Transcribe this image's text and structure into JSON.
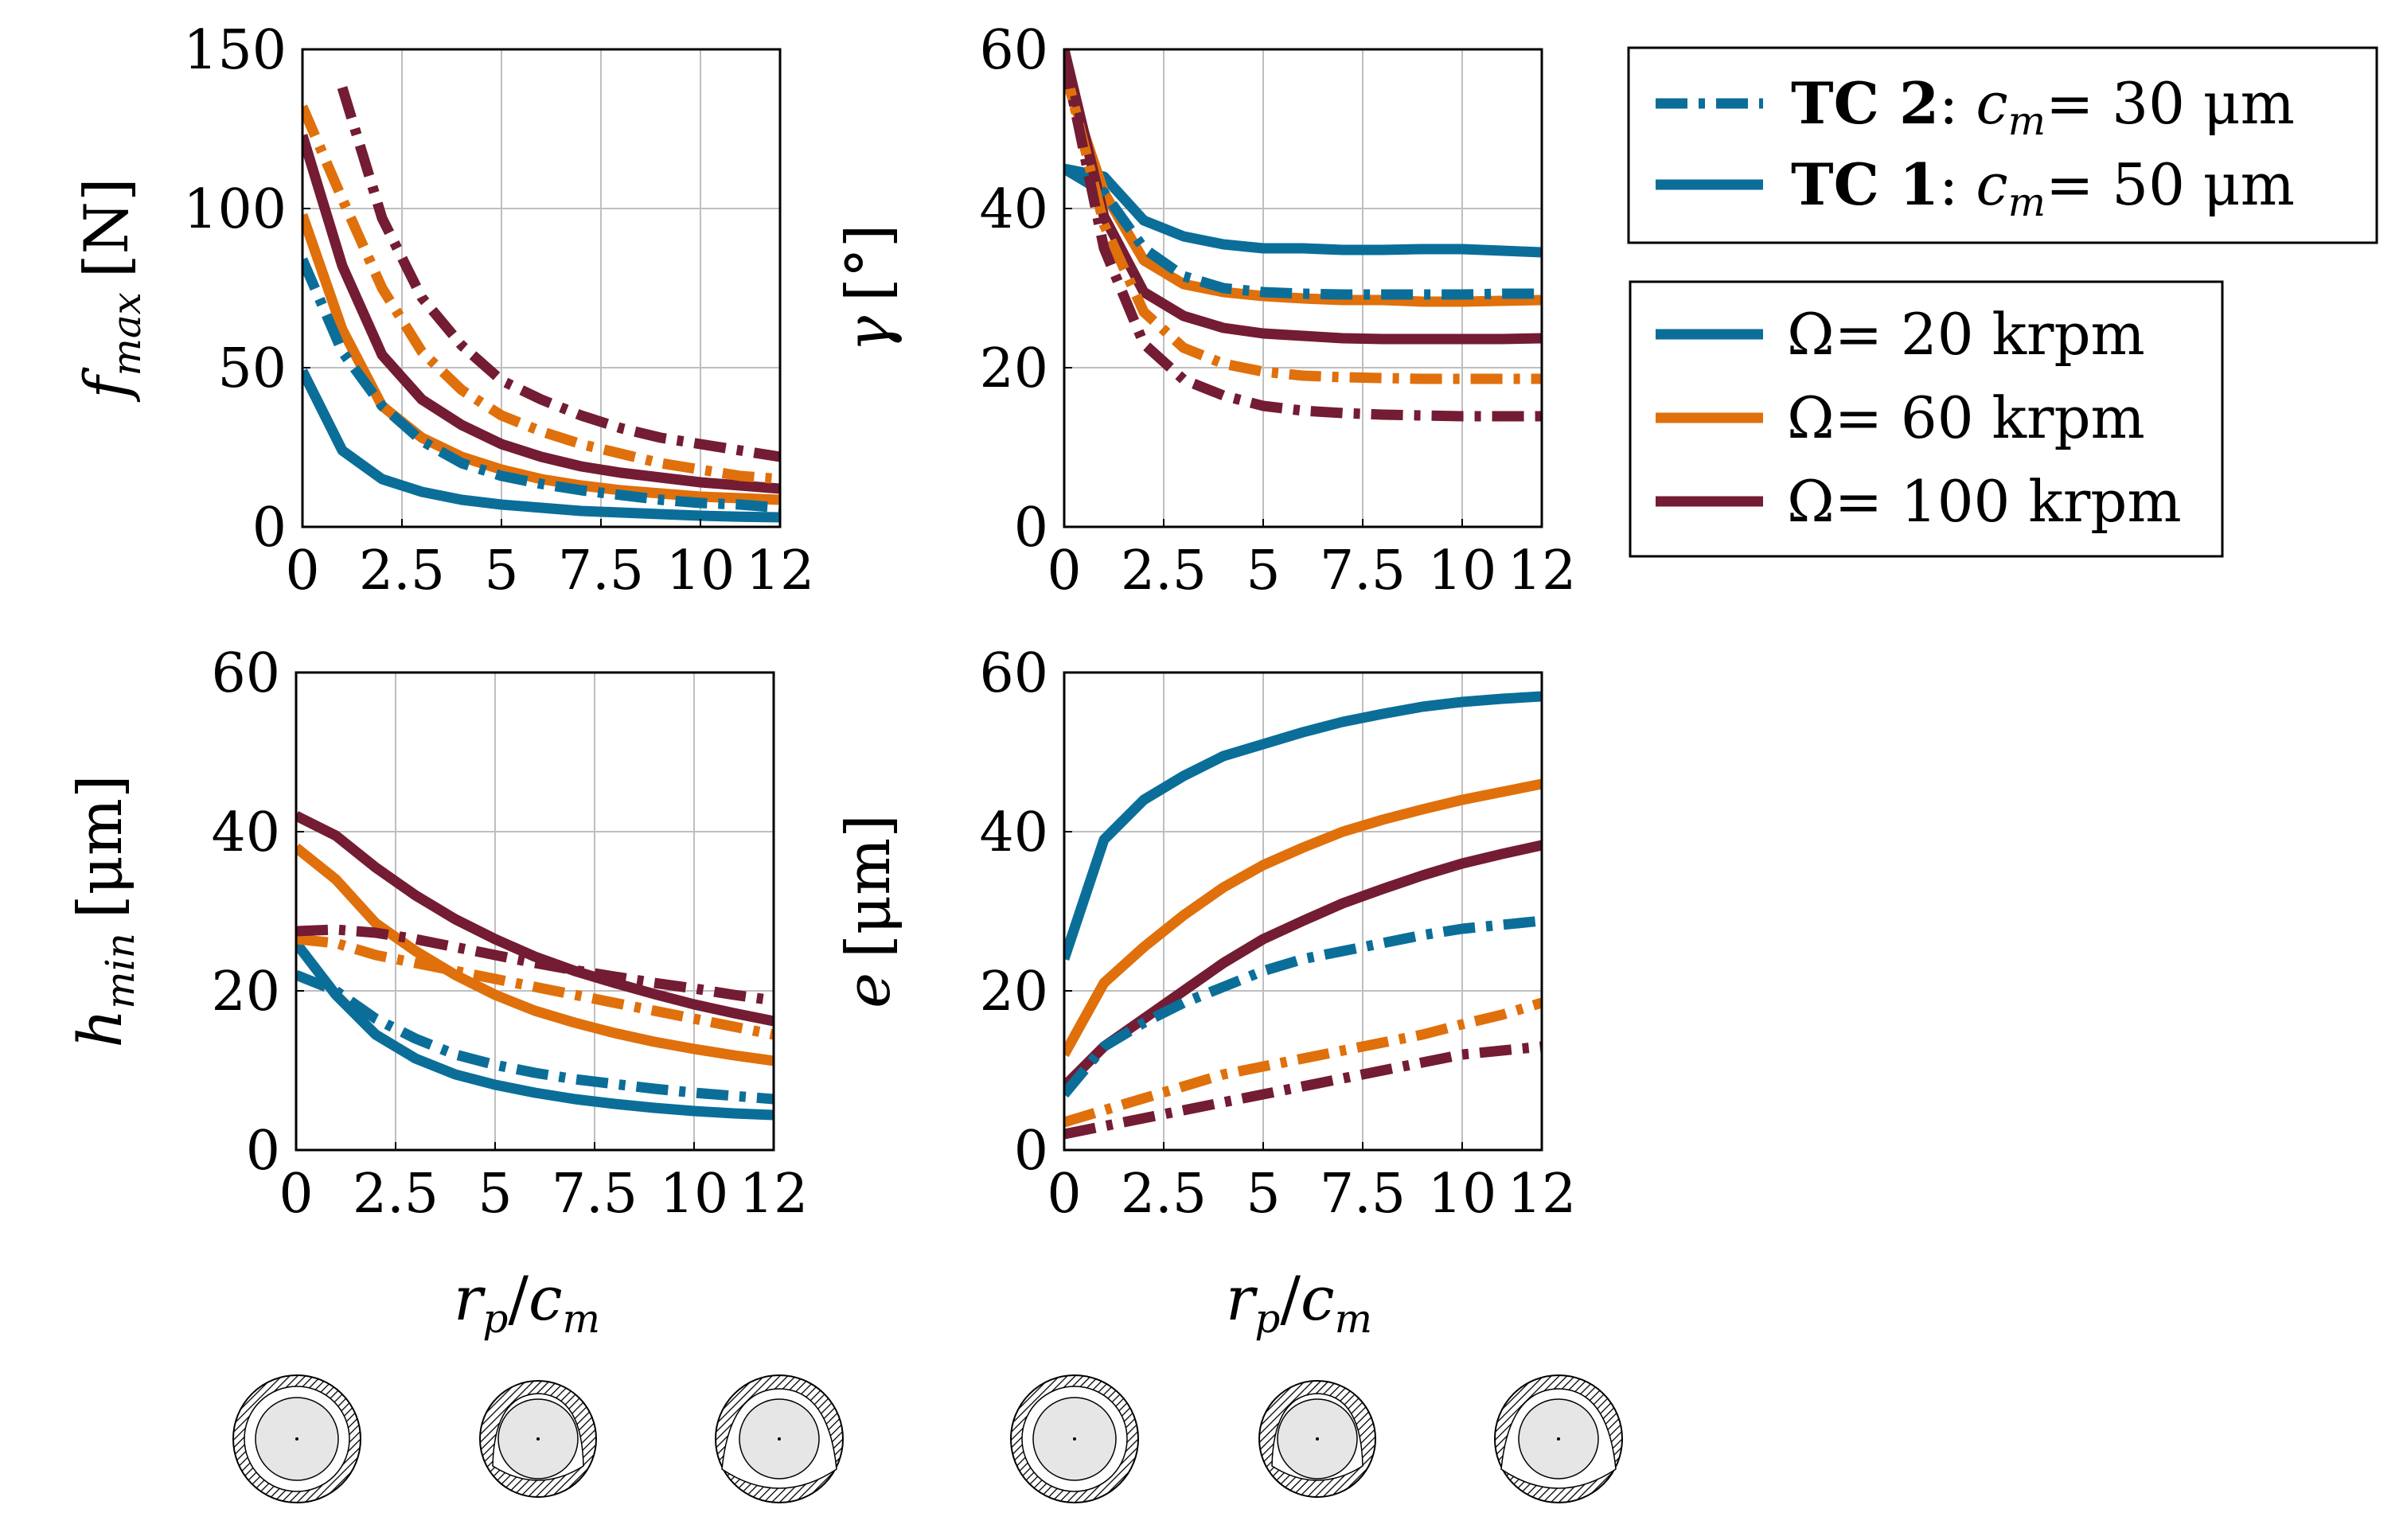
{
  "colors": {
    "omega_20": "#0b6e99",
    "omega_60": "#e0700b",
    "omega_100": "#731c33",
    "grid": "#bfbfbf"
  },
  "legend_case": {
    "entries": [
      {
        "tc": "TC 2",
        "sep": ":",
        "var_c": "c",
        "var_sub": "m",
        "eq": "= 30 μm",
        "style": "dashdot"
      },
      {
        "tc": "TC 1",
        "sep": ":",
        "var_c": "c",
        "var_sub": "m",
        "eq": "= 50 μm",
        "style": "solid"
      }
    ]
  },
  "legend_speed": {
    "entries": [
      {
        "sym": "Ω",
        "eq": "= 20 krpm",
        "color_key": "omega_20"
      },
      {
        "sym": "Ω",
        "eq": "= 60 krpm",
        "color_key": "omega_60"
      },
      {
        "sym": "Ω",
        "eq": "= 100 krpm",
        "color_key": "omega_100"
      }
    ]
  },
  "xlabel": {
    "r": "r",
    "r_sub": "p",
    "slash": "/",
    "c": "c",
    "c_sub": "m"
  },
  "chart_data": [
    {
      "id": "fmax",
      "type": "line",
      "ylabel": {
        "sym": "f",
        "sub": "max",
        "unit": "[N]"
      },
      "xlim": [
        0,
        12
      ],
      "ylim": [
        0,
        150
      ],
      "xticks": [
        0,
        2.5,
        5,
        7.5,
        10,
        12
      ],
      "xtick_labels": [
        "0",
        "2.5",
        "5",
        "7.5",
        "10",
        "12"
      ],
      "yticks": [
        0,
        50,
        100,
        150
      ],
      "ytick_labels": [
        "0",
        "50",
        "100",
        "150"
      ],
      "x": [
        0,
        1,
        2,
        3,
        4,
        5,
        6,
        7,
        8,
        9,
        10,
        11,
        12
      ],
      "series": [
        {
          "name": "TC 1, Ω = 20 krpm",
          "case": "TC 1",
          "speed": "omega_20",
          "values": [
            49,
            24,
            15,
            11,
            8.5,
            7,
            6,
            5,
            4.5,
            4,
            3.5,
            3.2,
            3
          ]
        },
        {
          "name": "TC 1, Ω = 60 krpm",
          "case": "TC 1",
          "speed": "omega_60",
          "values": [
            98,
            62,
            38,
            28,
            22,
            18,
            15,
            13,
            11.5,
            10.5,
            9.5,
            9,
            8.5
          ]
        },
        {
          "name": "TC 1, Ω = 100 krpm",
          "case": "TC 1",
          "speed": "omega_100",
          "values": [
            123,
            82,
            54,
            40,
            32,
            26,
            22,
            19,
            17,
            15.5,
            14,
            13,
            12
          ]
        },
        {
          "name": "TC 2, Ω = 20 krpm",
          "case": "TC 2",
          "speed": "omega_20",
          "values": [
            84,
            55,
            38,
            27,
            20,
            16,
            13.5,
            11.5,
            10,
            8.5,
            7.5,
            7,
            6
          ]
        },
        {
          "name": "TC 2, Ω = 60 krpm",
          "case": "TC 2",
          "speed": "omega_60",
          "values": [
            132,
            103,
            75,
            55,
            43,
            35,
            30,
            26,
            23,
            20,
            18,
            16,
            15
          ]
        },
        {
          "name": "TC 2, Ω = 100 krpm",
          "case": "TC 2",
          "speed": "omega_100",
          "values": [
            null,
            138,
            97,
            72,
            57,
            46,
            40,
            35,
            31,
            28,
            26,
            24,
            22
          ]
        }
      ]
    },
    {
      "id": "gamma",
      "type": "line",
      "ylabel": {
        "sym": "γ",
        "sub": "",
        "unit": "[°]"
      },
      "xlim": [
        0,
        12
      ],
      "ylim": [
        0,
        60
      ],
      "xticks": [
        0,
        2.5,
        5,
        7.5,
        10,
        12
      ],
      "xtick_labels": [
        "0",
        "2.5",
        "5",
        "7.5",
        "10",
        "12"
      ],
      "yticks": [
        0,
        20,
        40,
        60
      ],
      "ytick_labels": [
        "0",
        "20",
        "40",
        "60"
      ],
      "x": [
        0,
        1,
        2,
        3,
        4,
        5,
        6,
        7,
        8,
        9,
        10,
        11,
        12
      ],
      "series": [
        {
          "name": "TC 1, Ω = 20 krpm",
          "case": "TC 1",
          "speed": "omega_20",
          "values": [
            45,
            44,
            38.5,
            36.5,
            35.5,
            35,
            35,
            34.8,
            34.8,
            34.9,
            34.9,
            34.7,
            34.5
          ]
        },
        {
          "name": "TC 1, Ω = 60 krpm",
          "case": "TC 1",
          "speed": "omega_60",
          "values": [
            57,
            42,
            33.5,
            30.5,
            29.5,
            29,
            28.7,
            28.5,
            28.5,
            28.3,
            28.3,
            28.4,
            28.5
          ]
        },
        {
          "name": "TC 1, Ω = 100 krpm",
          "case": "TC 1",
          "speed": "omega_100",
          "values": [
            60,
            39,
            29.5,
            26.5,
            25,
            24.3,
            24,
            23.7,
            23.6,
            23.6,
            23.6,
            23.6,
            23.7
          ]
        },
        {
          "name": "TC 2, Ω = 20 krpm",
          "case": "TC 2",
          "speed": "omega_20",
          "values": [
            45,
            42,
            35,
            31.5,
            30,
            29.5,
            29.3,
            29.2,
            29.2,
            29.2,
            29.2,
            29.3,
            29.3
          ]
        },
        {
          "name": "TC 2, Ω = 60 krpm",
          "case": "TC 2",
          "speed": "omega_60",
          "values": [
            58,
            38,
            27,
            22.5,
            20.5,
            19.5,
            19,
            18.8,
            18.7,
            18.6,
            18.6,
            18.6,
            18.6
          ]
        },
        {
          "name": "TC 2, Ω = 100 krpm",
          "case": "TC 2",
          "speed": "omega_100",
          "values": [
            59,
            35,
            23,
            18.5,
            16.5,
            15.2,
            14.6,
            14.3,
            14.1,
            14,
            13.9,
            13.9,
            13.9
          ]
        }
      ]
    },
    {
      "id": "hmin",
      "type": "line",
      "ylabel": {
        "sym": "h",
        "sub": "min",
        "unit": "[μm]"
      },
      "xlim": [
        0,
        12
      ],
      "ylim": [
        0,
        60
      ],
      "xticks": [
        0,
        2.5,
        5,
        7.5,
        10,
        12
      ],
      "xtick_labels": [
        "0",
        "2.5",
        "5",
        "7.5",
        "10",
        "12"
      ],
      "yticks": [
        0,
        20,
        40,
        60
      ],
      "ytick_labels": [
        "0",
        "20",
        "40",
        "60"
      ],
      "x": [
        0,
        1,
        2,
        3,
        4,
        5,
        6,
        7,
        8,
        9,
        10,
        11,
        12
      ],
      "series": [
        {
          "name": "TC 1, Ω = 20 krpm",
          "case": "TC 1",
          "speed": "omega_20",
          "values": [
            26,
            19.5,
            14.5,
            11.5,
            9.5,
            8.2,
            7.2,
            6.4,
            5.8,
            5.3,
            4.9,
            4.6,
            4.4
          ]
        },
        {
          "name": "TC 1, Ω = 60 krpm",
          "case": "TC 1",
          "speed": "omega_60",
          "values": [
            38,
            34,
            28.5,
            25,
            22,
            19.5,
            17.5,
            16,
            14.7,
            13.6,
            12.7,
            11.9,
            11.2
          ]
        },
        {
          "name": "TC 1, Ω = 100 krpm",
          "case": "TC 1",
          "speed": "omega_100",
          "values": [
            42,
            39.5,
            35.5,
            32,
            29,
            26.5,
            24.3,
            22.5,
            21,
            19.6,
            18.3,
            17.2,
            16.2
          ]
        },
        {
          "name": "TC 2, Ω = 20 krpm",
          "case": "TC 2",
          "speed": "omega_20",
          "values": [
            22,
            20,
            16.5,
            14,
            12,
            10.7,
            9.7,
            8.9,
            8.3,
            7.7,
            7.2,
            6.8,
            6.4
          ]
        },
        {
          "name": "TC 2, Ω = 60 krpm",
          "case": "TC 2",
          "speed": "omega_60",
          "values": [
            26.5,
            26,
            24.5,
            23.5,
            22.5,
            21.5,
            20.5,
            19.5,
            18.5,
            17.5,
            16.5,
            15.5,
            14.5
          ]
        },
        {
          "name": "TC 2, Ω = 100 krpm",
          "case": "TC 2",
          "speed": "omega_100",
          "values": [
            27.5,
            27.7,
            27.3,
            26.5,
            25.5,
            24.5,
            23.5,
            22.6,
            21.8,
            21,
            20.3,
            19.5,
            18.8
          ]
        }
      ]
    },
    {
      "id": "e",
      "type": "line",
      "ylabel": {
        "sym": "e",
        "sub": "",
        "unit": "[μm]"
      },
      "xlim": [
        0,
        12
      ],
      "ylim": [
        0,
        60
      ],
      "xticks": [
        0,
        2.5,
        5,
        7.5,
        10,
        12
      ],
      "xtick_labels": [
        "0",
        "2.5",
        "5",
        "7.5",
        "10",
        "12"
      ],
      "yticks": [
        0,
        20,
        40,
        60
      ],
      "ytick_labels": [
        "0",
        "20",
        "40",
        "60"
      ],
      "x": [
        0,
        1,
        2,
        3,
        4,
        5,
        6,
        7,
        8,
        9,
        10,
        11,
        12
      ],
      "series": [
        {
          "name": "TC 1, Ω = 20 krpm",
          "case": "TC 1",
          "speed": "omega_20",
          "values": [
            24,
            39,
            44,
            47,
            49.5,
            51,
            52.5,
            53.8,
            54.8,
            55.7,
            56.3,
            56.7,
            57
          ]
        },
        {
          "name": "TC 1, Ω = 60 krpm",
          "case": "TC 1",
          "speed": "omega_60",
          "values": [
            12,
            21,
            25.5,
            29.5,
            33,
            35.8,
            38,
            40,
            41.5,
            42.8,
            44,
            45,
            46
          ]
        },
        {
          "name": "TC 1, Ω = 100 krpm",
          "case": "TC 1",
          "speed": "omega_100",
          "values": [
            8,
            13,
            16.5,
            20,
            23.5,
            26.5,
            28.8,
            31,
            32.8,
            34.5,
            36,
            37.2,
            38.3
          ]
        },
        {
          "name": "TC 2, Ω = 20 krpm",
          "case": "TC 2",
          "speed": "omega_20",
          "values": [
            7,
            13,
            16,
            18.5,
            20.5,
            22.5,
            24,
            25,
            26,
            27,
            27.8,
            28.3,
            28.8
          ]
        },
        {
          "name": "TC 2, Ω = 60 krpm",
          "case": "TC 2",
          "speed": "omega_60",
          "values": [
            3.5,
            5,
            6.5,
            8,
            9.5,
            10.5,
            11.5,
            12.5,
            13.5,
            14.5,
            15.8,
            17,
            18.5
          ]
        },
        {
          "name": "TC 2, Ω = 100 krpm",
          "case": "TC 2",
          "speed": "omega_100",
          "values": [
            2,
            3,
            4,
            5,
            6,
            7,
            8,
            9,
            10,
            11,
            12,
            12.5,
            13
          ]
        }
      ]
    }
  ]
}
